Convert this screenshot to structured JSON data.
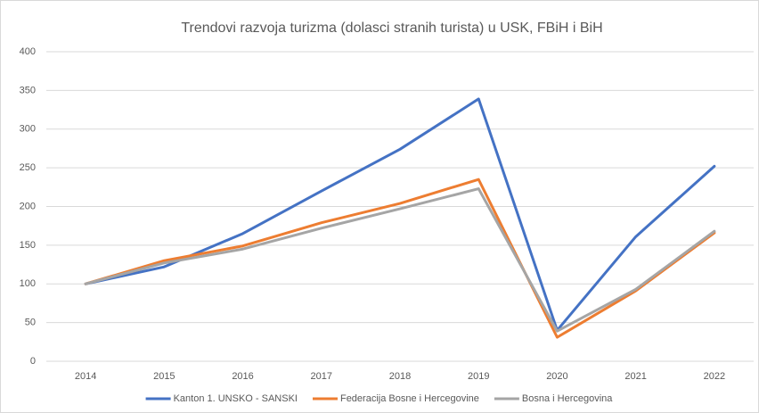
{
  "chart_data": {
    "type": "line",
    "title": "Trendovi razvoja turizma (dolasci stranih turista) u USK, FBiH i BiH",
    "categories": [
      "2014",
      "2015",
      "2016",
      "2017",
      "2018",
      "2019",
      "2020",
      "2021",
      "2022"
    ],
    "series": [
      {
        "name": "Kanton 1. UNSKO - SANSKI",
        "color": "#4472c4",
        "values": [
          100,
          122,
          165,
          220,
          274,
          339,
          40,
          161,
          252
        ]
      },
      {
        "name": "Federacija Bosne i Hercegovine",
        "color": "#ed7d31",
        "values": [
          100,
          130,
          149,
          179,
          204,
          235,
          31,
          91,
          166
        ]
      },
      {
        "name": "Bosna i Hercegovina",
        "color": "#a5a5a5",
        "values": [
          100,
          127,
          145,
          172,
          197,
          223,
          39,
          93,
          168
        ]
      }
    ],
    "ylim": [
      0,
      400
    ],
    "yticks": [
      0,
      50,
      100,
      150,
      200,
      250,
      300,
      350,
      400
    ],
    "grid": true,
    "legend": "bottom"
  }
}
